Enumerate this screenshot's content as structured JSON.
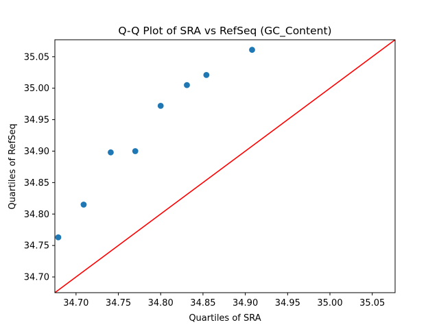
{
  "chart_data": {
    "type": "scatter",
    "title": "Q-Q Plot of SRA vs RefSeq (GC_Content)",
    "xlabel": "Quartiles of SRA",
    "ylabel": "Quartiles of RefSeq",
    "xlim": [
      34.675,
      35.077
    ],
    "ylim": [
      34.675,
      35.077
    ],
    "xticks": [
      34.7,
      34.75,
      34.8,
      34.85,
      34.9,
      34.95,
      35.0,
      35.05
    ],
    "yticks": [
      34.7,
      34.75,
      34.8,
      34.85,
      34.9,
      34.95,
      35.0,
      35.05
    ],
    "xtick_labels": [
      "34.70",
      "34.75",
      "34.80",
      "34.85",
      "34.90",
      "34.95",
      "35.00",
      "35.05"
    ],
    "ytick_labels": [
      "34.70",
      "34.75",
      "34.80",
      "34.85",
      "34.90",
      "34.95",
      "35.00",
      "35.05"
    ],
    "grid": false,
    "legend": "none",
    "series": [
      {
        "type": "scatter",
        "color": "#1f77b4",
        "points": [
          {
            "x": 34.679,
            "y": 34.763
          },
          {
            "x": 34.709,
            "y": 34.815
          },
          {
            "x": 34.741,
            "y": 34.898
          },
          {
            "x": 34.77,
            "y": 34.9
          },
          {
            "x": 34.8,
            "y": 34.972
          },
          {
            "x": 34.831,
            "y": 35.005
          },
          {
            "x": 34.854,
            "y": 35.021
          },
          {
            "x": 34.908,
            "y": 35.061
          }
        ]
      },
      {
        "type": "line",
        "color": "#ff0000",
        "points": [
          {
            "x": 34.675,
            "y": 34.675
          },
          {
            "x": 35.077,
            "y": 35.077
          }
        ]
      }
    ]
  }
}
